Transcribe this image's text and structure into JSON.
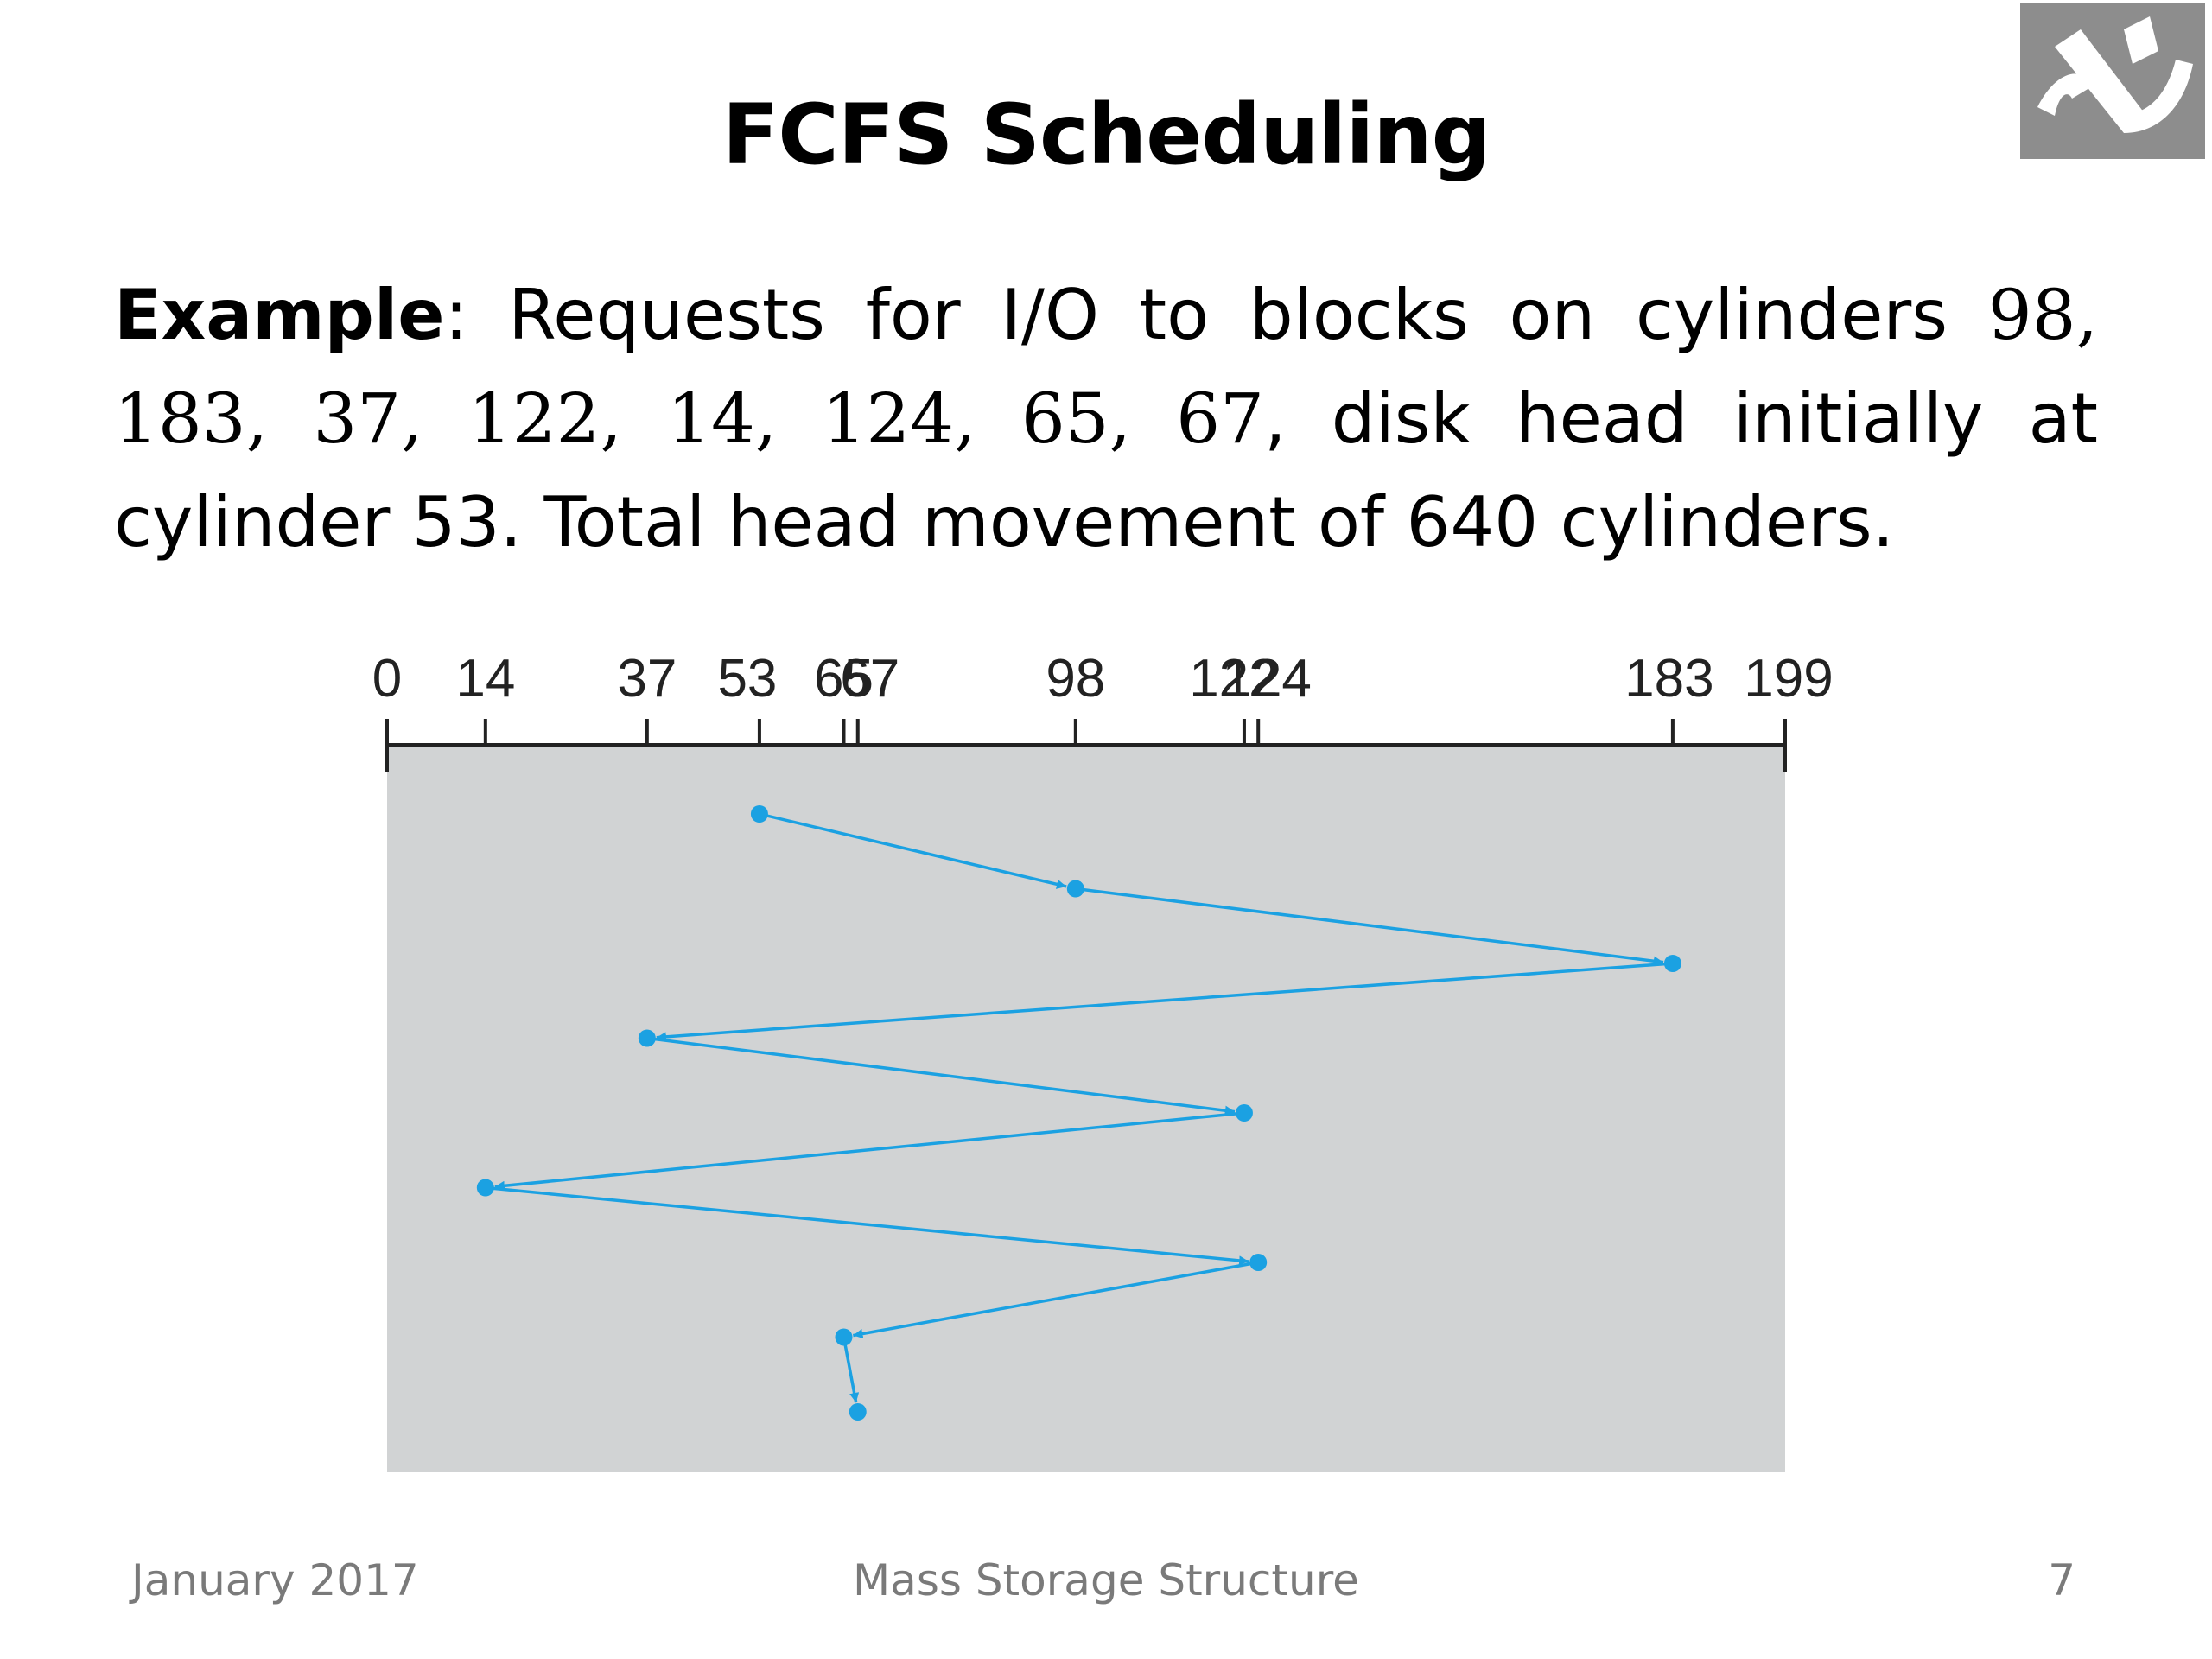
{
  "slide": {
    "title": "FCFS Scheduling",
    "body": {
      "label": "Example",
      "colon": ": ",
      "intro": "Requests for I/O to blocks on cylinders ",
      "sequence": "98, 183, 37, 122, 14, 124, 65, 67",
      "after": ", disk head initially at cylinder 53. Total head movement of 640 cylinders."
    },
    "footer": {
      "date": "January 2017",
      "center": "Mass Storage Structure",
      "page": "7"
    }
  },
  "colors": {
    "plot_bg": "#d1d3d4",
    "path": "#1ba1e2",
    "axis": "#222222",
    "logo_bg": "#8d8d8d"
  },
  "icons": {
    "logo": "logo-icon"
  },
  "chart_data": {
    "type": "line",
    "title": "",
    "xlabel": "",
    "ylabel": "",
    "xlim": [
      0,
      199
    ],
    "tick_labels": [
      "0",
      "14",
      "37",
      "53",
      "65",
      "67",
      "98",
      "122",
      "124",
      "183",
      "199"
    ],
    "tick_values": [
      0,
      14,
      37,
      53,
      65,
      67,
      98,
      122,
      124,
      183,
      199
    ],
    "head_start": 53,
    "sequence": [
      53,
      98,
      183,
      37,
      122,
      14,
      124,
      65,
      67
    ],
    "grid": false,
    "legend": "none"
  }
}
